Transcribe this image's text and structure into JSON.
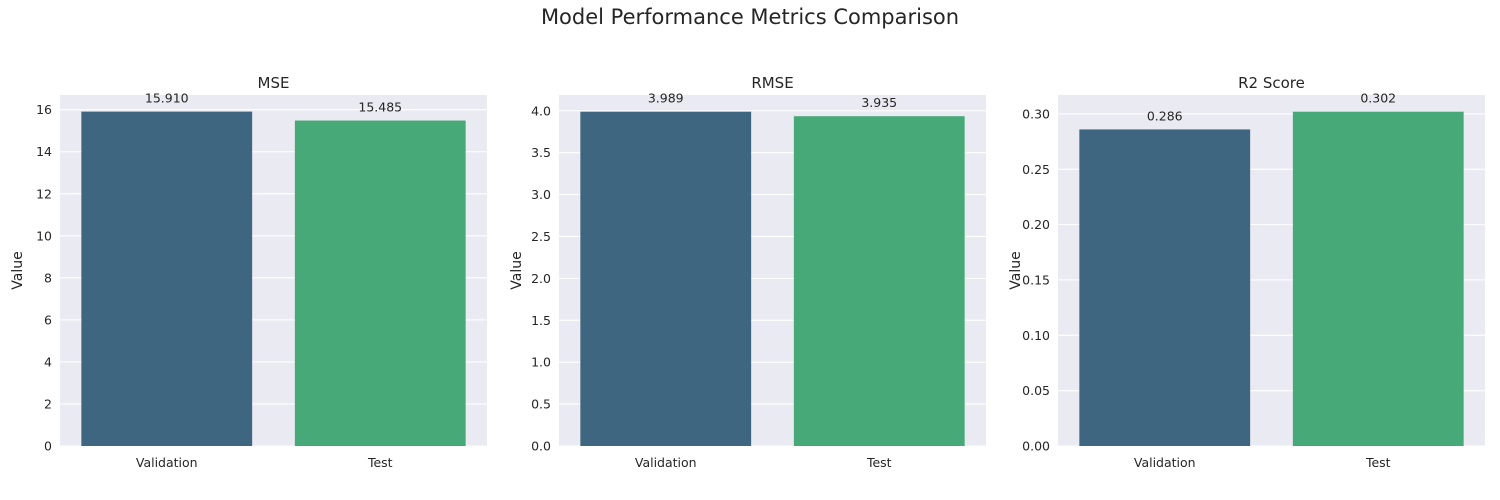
{
  "figure": {
    "title": "Model Performance Metrics Comparison"
  },
  "chart_data": [
    {
      "type": "bar",
      "title": "MSE",
      "xlabel": "",
      "ylabel": "Value",
      "categories": [
        "Validation",
        "Test"
      ],
      "values": [
        15.91,
        15.485
      ],
      "data_labels": [
        "15.910",
        "15.485"
      ],
      "ylim": [
        0,
        16.7
      ],
      "yticks": [
        0,
        2,
        4,
        6,
        8,
        10,
        12,
        14,
        16
      ],
      "ytick_labels": [
        "0",
        "2",
        "4",
        "6",
        "8",
        "10",
        "12",
        "14",
        "16"
      ],
      "colors": [
        "#3e6680",
        "#47a878"
      ],
      "grid": true
    },
    {
      "type": "bar",
      "title": "RMSE",
      "xlabel": "",
      "ylabel": "Value",
      "categories": [
        "Validation",
        "Test"
      ],
      "values": [
        3.989,
        3.935
      ],
      "data_labels": [
        "3.989",
        "3.935"
      ],
      "ylim": [
        0,
        4.188
      ],
      "yticks": [
        0,
        0.5,
        1.0,
        1.5,
        2.0,
        2.5,
        3.0,
        3.5,
        4.0
      ],
      "ytick_labels": [
        "0.0",
        "0.5",
        "1.0",
        "1.5",
        "2.0",
        "2.5",
        "3.0",
        "3.5",
        "4.0"
      ],
      "colors": [
        "#3e6680",
        "#47a878"
      ],
      "grid": true
    },
    {
      "type": "bar",
      "title": "R2 Score",
      "xlabel": "",
      "ylabel": "Value",
      "categories": [
        "Validation",
        "Test"
      ],
      "values": [
        0.286,
        0.302
      ],
      "data_labels": [
        "0.286",
        "0.302"
      ],
      "ylim": [
        0,
        0.3171
      ],
      "yticks": [
        0,
        0.05,
        0.1,
        0.15,
        0.2,
        0.25,
        0.3
      ],
      "ytick_labels": [
        "0.00",
        "0.05",
        "0.10",
        "0.15",
        "0.20",
        "0.25",
        "0.30"
      ],
      "colors": [
        "#3e6680",
        "#47a878"
      ],
      "grid": true
    }
  ]
}
